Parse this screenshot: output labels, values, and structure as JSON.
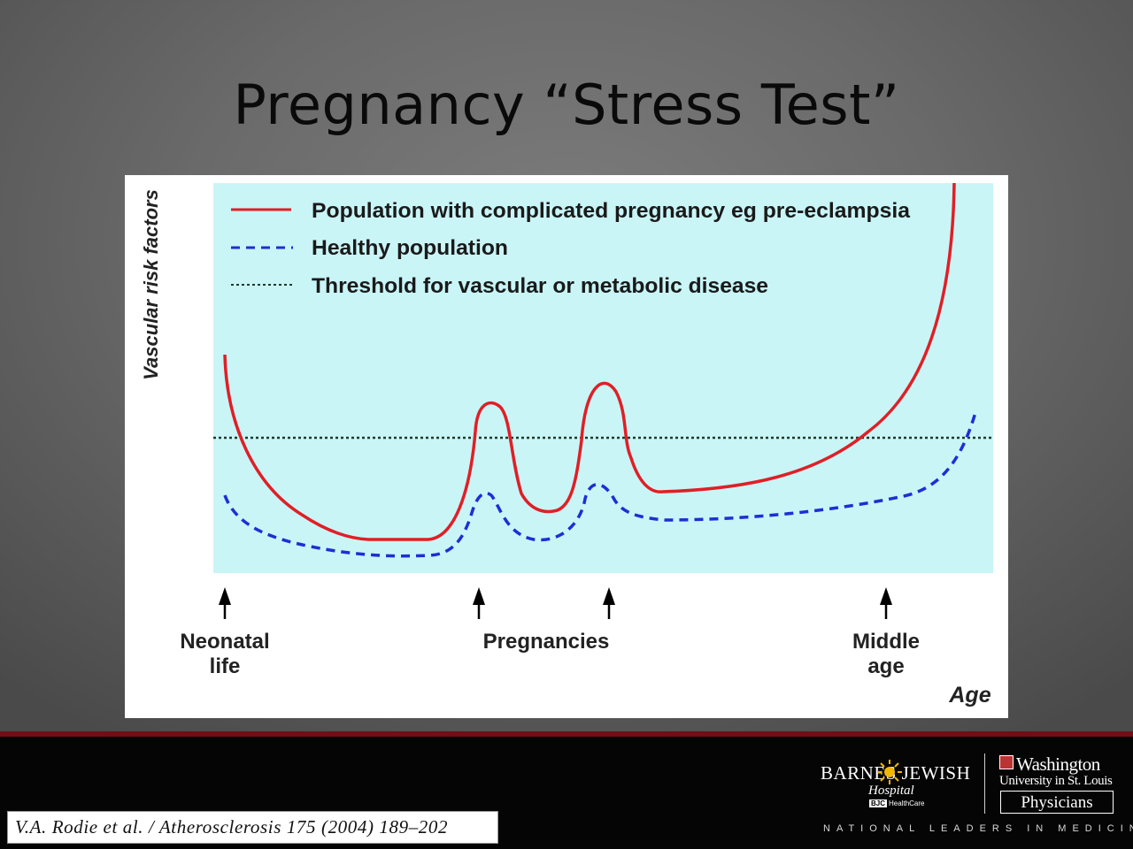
{
  "slide": {
    "title": "Pregnancy “Stress Test”"
  },
  "figure": {
    "ylabel": "Vascular risk factors",
    "xlabel": "Age",
    "legend": [
      {
        "label": "Population with complicated pregnancy eg pre-eclampsia",
        "style": "solid",
        "color": "#e01f26"
      },
      {
        "label": "Healthy population",
        "style": "dashed",
        "color": "#1d2fd4"
      },
      {
        "label": "Threshold for vascular or metabolic disease",
        "style": "dotted",
        "color": "#1e3a2a"
      }
    ],
    "markers": {
      "neonatal_line1": "Neonatal",
      "neonatal_line2": "life",
      "pregnancies": "Pregnancies",
      "middle_line1": "Middle",
      "middle_line2": "age"
    },
    "colors": {
      "plot_bg": "#c9f5f7",
      "solid": "#e01f26",
      "dashed": "#1d2fd4",
      "dotted": "#1e3a2a"
    }
  },
  "citation": "V.A. Rodie et al. / Atherosclerosis 175 (2004) 189–202",
  "footer": {
    "bjh_name": "BARNES JEWISH",
    "bjh_sub": "Hospital",
    "bjh_bjc_badge": "BJC",
    "bjh_bjc": "HealthCare",
    "wustl_name": "Washington",
    "wustl_sub": "University in St. Louis",
    "wustl_physicians": "Physicians",
    "tagline": "NATIONAL LEADERS IN MEDICINE"
  }
}
